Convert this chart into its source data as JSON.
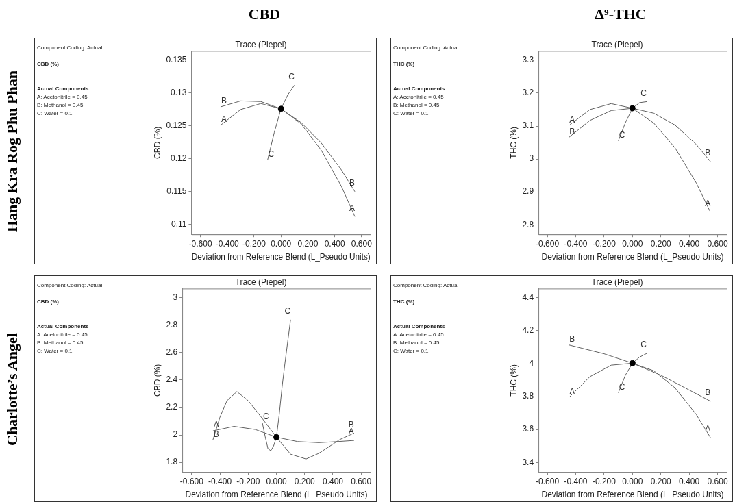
{
  "chart_data": [
    {
      "type": "line",
      "title": "CBD",
      "subtitle": "Trace (Piepel)",
      "xlabel": "Deviation from Reference Blend (L_Pseudo Units)",
      "ylabel": "CBD (%)",
      "annotations": [
        "Hang Kra Rog Phu Phan",
        "Component Coding: Actual",
        "CBD (%)",
        "Actual Components",
        "A: Acetonitrile = 0.45",
        "B: Methanol = 0.45",
        "C: Water = 0.1"
      ],
      "xlim": [
        -0.667,
        0.667
      ],
      "ylim": [
        0.1085,
        0.1364
      ],
      "xticks": [
        {
          "value": -0.6,
          "label": "-0.600"
        },
        {
          "value": -0.4,
          "label": "-0.400"
        },
        {
          "value": -0.2,
          "label": "-0.200"
        },
        {
          "value": 0,
          "label": "0.000"
        },
        {
          "value": 0.2,
          "label": "0.200"
        },
        {
          "value": 0.4,
          "label": "0.400"
        },
        {
          "value": 0.6,
          "label": "0.600"
        }
      ],
      "yticks": [
        0.11,
        0.115,
        0.12,
        0.125,
        0.13,
        0.135
      ],
      "series": [
        {
          "name": "A",
          "color": "#606060",
          "marker": "none",
          "x": [
            -0.45,
            -0.3,
            -0.15,
            0,
            0.15,
            0.3,
            0.45,
            0.55
          ],
          "values": [
            0.1251,
            0.1275,
            0.1284,
            0.1276,
            0.1253,
            0.1213,
            0.1158,
            0.1112
          ]
        },
        {
          "name": "B",
          "color": "#606060",
          "marker": "none",
          "x": [
            -0.45,
            -0.3,
            -0.15,
            0,
            0.15,
            0.3,
            0.45,
            0.55
          ],
          "values": [
            0.1279,
            0.1288,
            0.1287,
            0.1276,
            0.1255,
            0.1224,
            0.1183,
            0.115
          ]
        },
        {
          "name": "C",
          "color": "#606060",
          "marker": "none",
          "x": [
            -0.1,
            -0.05,
            0,
            0.05,
            0.1
          ],
          "values": [
            0.1198,
            0.124,
            0.1276,
            0.1297,
            0.1312
          ]
        },
        {
          "type": "scatter",
          "color": "#000000",
          "marker": "circle",
          "x": [
            0
          ],
          "values": [
            0.1276
          ]
        }
      ]
    },
    {
      "type": "line",
      "title": "Δ⁹-THC",
      "subtitle": "Trace (Piepel)",
      "xlabel": "Deviation from Reference Blend (L_Pseudo Units)",
      "ylabel": "THC (%)",
      "annotations": [
        "Component Coding: Actual",
        "THC (%)",
        "Actual Components",
        "A: Acetonitrile = 0.45",
        "B: Methanol = 0.45",
        "C: Water = 0.1"
      ],
      "xlim": [
        -0.663,
        0.665
      ],
      "ylim": [
        2.771,
        3.328
      ],
      "xticks": [
        {
          "value": -0.6,
          "label": "-0.600"
        },
        {
          "value": -0.4,
          "label": "-0.400"
        },
        {
          "value": -0.2,
          "label": "-0.200"
        },
        {
          "value": 0,
          "label": "0.000"
        },
        {
          "value": 0.2,
          "label": "0.200"
        },
        {
          "value": 0.4,
          "label": "0.400"
        },
        {
          "value": 0.6,
          "label": "0.600"
        }
      ],
      "yticks": [
        2.8,
        2.9,
        3,
        3.1,
        3.2,
        3.3
      ],
      "series": [
        {
          "name": "A",
          "color": "#606060",
          "marker": "none",
          "x": [
            -0.45,
            -0.3,
            -0.15,
            0,
            0.15,
            0.3,
            0.45,
            0.55
          ],
          "values": [
            3.101,
            3.15,
            3.168,
            3.154,
            3.109,
            3.034,
            2.927,
            2.838
          ]
        },
        {
          "name": "B",
          "color": "#606060",
          "marker": "none",
          "x": [
            -0.45,
            -0.3,
            -0.15,
            0,
            0.15,
            0.3,
            0.45,
            0.55
          ],
          "values": [
            3.065,
            3.117,
            3.147,
            3.154,
            3.139,
            3.103,
            3.044,
            2.992
          ]
        },
        {
          "name": "C",
          "color": "#606060",
          "marker": "none",
          "x": [
            -0.1,
            -0.05,
            0,
            0.05,
            0.1
          ],
          "values": [
            3.055,
            3.11,
            3.154,
            3.171,
            3.174
          ]
        },
        {
          "type": "scatter",
          "color": "#000000",
          "marker": "circle",
          "x": [
            0
          ],
          "values": [
            3.154
          ]
        }
      ]
    },
    {
      "type": "line",
      "subtitle": "Trace (Piepel)",
      "xlabel": "Deviation from Reference Blend (L_Pseudo Units)",
      "ylabel": "CBD (%)",
      "annotations": [
        "Charlotte’s Angel",
        "Component Coding: Actual",
        "CBD (%)",
        "Actual Components",
        "A: Acetonitrile = 0.45",
        "B: Methanol = 0.45",
        "C: Water = 0.1"
      ],
      "xlim": [
        -0.667,
        0.667
      ],
      "ylim": [
        1.73,
        3.067
      ],
      "xticks": [
        {
          "value": -0.6,
          "label": "-0.600"
        },
        {
          "value": -0.4,
          "label": "-0.400"
        },
        {
          "value": -0.2,
          "label": "-0.200"
        },
        {
          "value": 0,
          "label": "0.000"
        },
        {
          "value": 0.2,
          "label": "0.200"
        },
        {
          "value": 0.4,
          "label": "0.400"
        },
        {
          "value": 0.6,
          "label": "0.600"
        }
      ],
      "yticks": [
        1.8,
        2,
        2.2,
        2.4,
        2.6,
        2.8,
        3
      ],
      "series": [
        {
          "name": "A",
          "color": "#606060",
          "marker": "none",
          "x": [
            -0.45,
            -0.3,
            -0.15,
            0,
            0.15,
            0.3,
            0.45,
            0.55
          ],
          "values": [
            2.03,
            2.063,
            2.04,
            1.984,
            1.952,
            1.944,
            1.953,
            1.96
          ]
        },
        {
          "name": "B",
          "color": "#606060",
          "marker": "none",
          "x": [
            -0.45,
            -0.4,
            -0.35,
            -0.28,
            -0.2,
            -0.1,
            0,
            0.1,
            0.21,
            0.3,
            0.4,
            0.45,
            0.55
          ],
          "values": [
            1.964,
            2.13,
            2.25,
            2.316,
            2.25,
            2.12,
            1.984,
            1.86,
            1.825,
            1.866,
            1.933,
            1.967,
            2.014
          ]
        },
        {
          "name": "C",
          "color": "#606060",
          "marker": "none",
          "x": [
            -0.1,
            -0.08,
            -0.06,
            -0.04,
            -0.02,
            0,
            0.02,
            0.04,
            0.06,
            0.08,
            0.1
          ],
          "values": [
            2.09,
            1.99,
            1.9,
            1.885,
            1.92,
            1.984,
            2.15,
            2.35,
            2.52,
            2.68,
            2.84
          ]
        },
        {
          "type": "scatter",
          "color": "#000000",
          "marker": "circle",
          "x": [
            0
          ],
          "values": [
            1.984
          ]
        }
      ]
    },
    {
      "type": "line",
      "subtitle": "Trace (Piepel)",
      "xlabel": "Deviation from Reference Blend (L_Pseudo Units)",
      "ylabel": "THC (%)",
      "annotations": [
        "Component Coding: Actual",
        "THC (%)",
        "Actual Components",
        "A: Acetonitrile = 0.45",
        "B: Methanol = 0.45",
        "C: Water = 0.1"
      ],
      "xlim": [
        -0.663,
        0.665
      ],
      "ylim": [
        3.342,
        4.456
      ],
      "xticks": [
        {
          "value": -0.6,
          "label": "-0.600"
        },
        {
          "value": -0.4,
          "label": "-0.400"
        },
        {
          "value": -0.2,
          "label": "-0.200"
        },
        {
          "value": 0,
          "label": "0.000"
        },
        {
          "value": 0.2,
          "label": "0.200"
        },
        {
          "value": 0.4,
          "label": "0.400"
        },
        {
          "value": 0.6,
          "label": "0.600"
        }
      ],
      "yticks": [
        3.4,
        3.6,
        3.8,
        4,
        4.2,
        4.4
      ],
      "series": [
        {
          "name": "A",
          "color": "#606060",
          "marker": "none",
          "x": [
            -0.45,
            -0.3,
            -0.15,
            0,
            0.15,
            0.3,
            0.45,
            0.55
          ],
          "values": [
            3.793,
            3.921,
            3.991,
            4.003,
            3.957,
            3.853,
            3.691,
            3.551
          ]
        },
        {
          "name": "B",
          "color": "#606060",
          "marker": "none",
          "x": [
            -0.45,
            -0.2,
            0,
            0.2,
            0.4,
            0.55
          ],
          "values": [
            4.114,
            4.06,
            4.003,
            3.93,
            3.84,
            3.772
          ]
        },
        {
          "name": "C",
          "color": "#606060",
          "marker": "none",
          "x": [
            -0.1,
            -0.05,
            0,
            0.05,
            0.1
          ],
          "values": [
            3.823,
            3.93,
            4.003,
            4.04,
            4.062
          ]
        },
        {
          "type": "scatter",
          "color": "#000000",
          "marker": "circle",
          "x": [
            0
          ],
          "values": [
            4.003
          ]
        }
      ]
    }
  ]
}
